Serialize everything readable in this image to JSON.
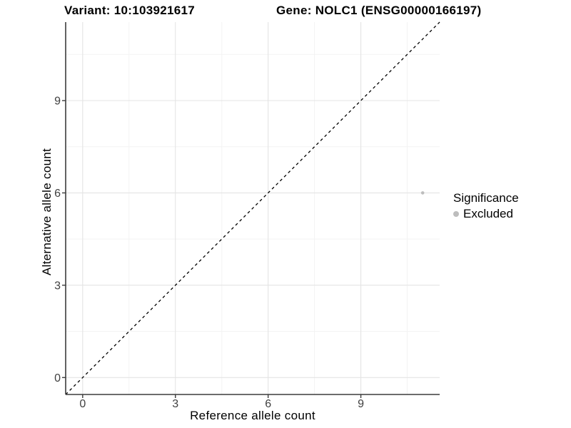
{
  "header": {
    "variant_title": "Variant: 10:103921617",
    "gene_title": "Gene: NOLC1 (ENSG00000166197)"
  },
  "legend": {
    "title": "Significance",
    "items": [
      {
        "label": "Excluded",
        "color": "#BDBDBD"
      }
    ]
  },
  "chart_data": {
    "type": "scatter",
    "title": "Variant: 10:103921617   Gene: NOLC1 (ENSG00000166197)",
    "xlabel": "Reference allele count",
    "ylabel": "Alternative allele count",
    "xlim": [
      -0.55,
      11.55
    ],
    "ylim": [
      -0.55,
      11.55
    ],
    "xticks": [
      0,
      3,
      6,
      9
    ],
    "yticks": [
      0,
      3,
      6,
      9
    ],
    "grid": "major+minor",
    "legend_position": "right",
    "identity_line": {
      "style": "dashed",
      "color": "#000000",
      "from": [
        -0.55,
        -0.55
      ],
      "to": [
        11.55,
        11.55
      ]
    },
    "series": [
      {
        "name": "Excluded",
        "color": "#BDBDBD",
        "marker": "circle",
        "size": 2.3,
        "points": [
          [
            11,
            6
          ]
        ]
      }
    ]
  },
  "colors": {
    "background": "#FFFFFF",
    "grid_major": "#E4E4E4",
    "grid_minor": "#F3F3F3",
    "axis_line": "#3C3C3C",
    "tick_text": "#404040",
    "title_text": "#000000"
  }
}
